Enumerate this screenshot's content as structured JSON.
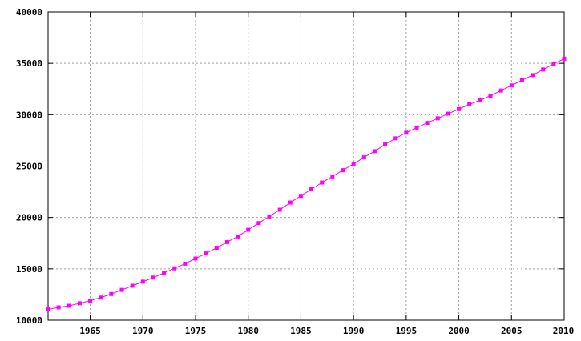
{
  "chart_data": {
    "type": "line",
    "title": "",
    "xlabel": "",
    "ylabel": "",
    "xlim": [
      1961,
      2010
    ],
    "ylim": [
      10000,
      40000
    ],
    "x_ticks": [
      1965,
      1970,
      1975,
      1980,
      1985,
      1990,
      1995,
      2000,
      2005,
      2010
    ],
    "y_ticks": [
      10000,
      15000,
      20000,
      25000,
      30000,
      35000,
      40000
    ],
    "grid": true,
    "legend": "none",
    "series": [
      {
        "color": "#ff00ff",
        "marker": "square",
        "x": [
          1961,
          1962,
          1963,
          1964,
          1965,
          1966,
          1967,
          1968,
          1969,
          1970,
          1971,
          1972,
          1973,
          1974,
          1975,
          1976,
          1977,
          1978,
          1979,
          1980,
          1981,
          1982,
          1983,
          1984,
          1985,
          1986,
          1987,
          1988,
          1989,
          1990,
          1991,
          1992,
          1993,
          1994,
          1995,
          1996,
          1997,
          1998,
          1999,
          2000,
          2001,
          2002,
          2003,
          2004,
          2005,
          2006,
          2007,
          2008,
          2009,
          2010
        ],
        "values": [
          11050,
          11250,
          11400,
          11650,
          11900,
          12200,
          12550,
          12950,
          13350,
          13750,
          14150,
          14600,
          15050,
          15500,
          16000,
          16500,
          17050,
          17600,
          18150,
          18800,
          19450,
          20100,
          20750,
          21450,
          22100,
          22750,
          23400,
          24000,
          24600,
          25200,
          25850,
          26450,
          27100,
          27700,
          28250,
          28750,
          29200,
          29650,
          30100,
          30550,
          31000,
          31400,
          31850,
          32350,
          32850,
          33350,
          33850,
          34400,
          34950,
          35450
        ]
      }
    ]
  }
}
